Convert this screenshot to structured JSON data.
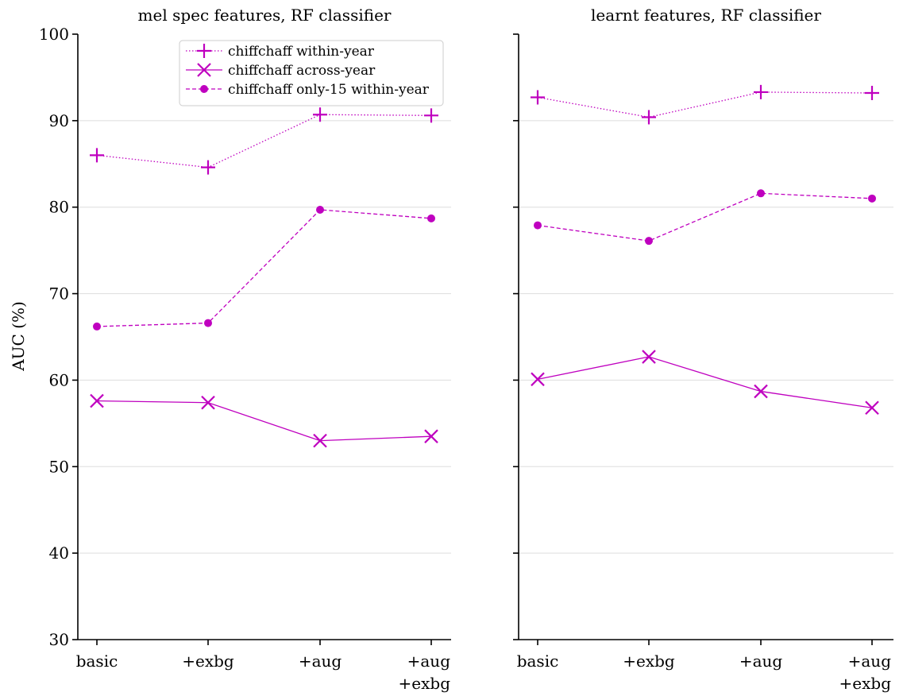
{
  "chart_data": [
    {
      "type": "line",
      "title": "mel spec features, RF classifier",
      "ylabel": "AUC (%)",
      "ylim": [
        30,
        100
      ],
      "yticks": [
        30,
        40,
        50,
        60,
        70,
        80,
        90,
        100
      ],
      "categories": [
        [
          "basic"
        ],
        [
          "+exbg"
        ],
        [
          "+aug"
        ],
        [
          "+aug",
          "+exbg"
        ]
      ],
      "grid": "horizontal",
      "legend": "top-right",
      "series": [
        {
          "name": "chiffchaff within-year",
          "marker": "plus",
          "linestyle": "dotted",
          "color": "#bf00bf",
          "values": [
            86.0,
            84.6,
            90.7,
            90.6
          ]
        },
        {
          "name": "chiffchaff across-year",
          "marker": "x",
          "linestyle": "solid",
          "color": "#bf00bf",
          "values": [
            57.6,
            57.4,
            53.0,
            53.5
          ]
        },
        {
          "name": "chiffchaff only-15 within-year",
          "marker": "circle",
          "linestyle": "dashed",
          "color": "#bf00bf",
          "values": [
            66.2,
            66.6,
            79.7,
            78.7
          ]
        }
      ]
    },
    {
      "type": "line",
      "title": "learnt features, RF classifier",
      "ylim": [
        30,
        100
      ],
      "categories": [
        [
          "basic"
        ],
        [
          "+exbg"
        ],
        [
          "+aug"
        ],
        [
          "+aug",
          "+exbg"
        ]
      ],
      "grid": "horizontal",
      "series": [
        {
          "name": "chiffchaff within-year",
          "marker": "plus",
          "linestyle": "dotted",
          "color": "#bf00bf",
          "values": [
            92.7,
            90.4,
            93.3,
            93.2
          ]
        },
        {
          "name": "chiffchaff across-year",
          "marker": "x",
          "linestyle": "solid",
          "color": "#bf00bf",
          "values": [
            60.1,
            62.7,
            58.7,
            56.8
          ]
        },
        {
          "name": "chiffchaff only-15 within-year",
          "marker": "circle",
          "linestyle": "dashed",
          "color": "#bf00bf",
          "values": [
            77.9,
            76.1,
            81.6,
            81.0
          ]
        }
      ]
    }
  ]
}
